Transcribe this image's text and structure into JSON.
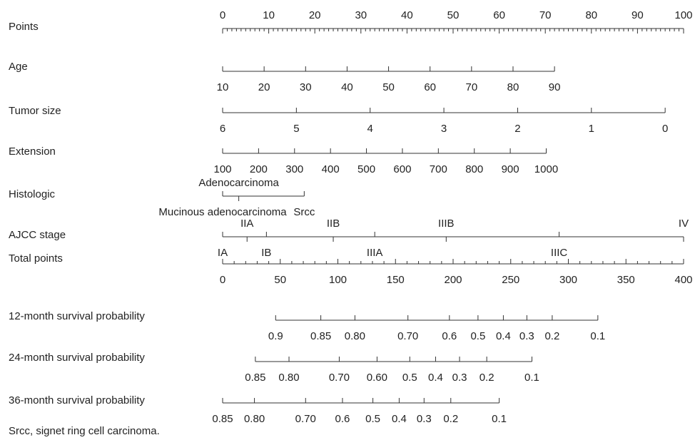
{
  "chart_data": {
    "type": "nomogram",
    "rows": [
      {
        "label": "Points",
        "ticks": [
          "0",
          "10",
          "20",
          "30",
          "40",
          "50",
          "60",
          "70",
          "80",
          "90",
          "100"
        ],
        "tick_positions": [
          0,
          10,
          20,
          30,
          40,
          50,
          60,
          70,
          80,
          90,
          100
        ],
        "labels_side": "above",
        "minor_ticks": 10
      },
      {
        "label": "Age",
        "ticks": [
          "10",
          "20",
          "30",
          "40",
          "50",
          "60",
          "70",
          "80",
          "90"
        ],
        "tick_positions": [
          0,
          9,
          18,
          27,
          36,
          45,
          54,
          63,
          72
        ],
        "labels_side": "below",
        "minor_ticks": 0
      },
      {
        "label": "Tumor size",
        "ticks": [
          "6",
          "5",
          "4",
          "3",
          "2",
          "1",
          "0"
        ],
        "tick_positions": [
          0,
          16,
          32,
          48,
          64,
          80,
          96
        ],
        "labels_side": "below",
        "minor_ticks": 0
      },
      {
        "label": "Extension",
        "ticks": [
          "100",
          "200",
          "300",
          "400",
          "500",
          "600",
          "700",
          "800",
          "900",
          "1000"
        ],
        "tick_positions": [
          0,
          7.8,
          15.6,
          23.4,
          31.2,
          39,
          46.8,
          54.6,
          62.4,
          70.2
        ],
        "labels_side": "below",
        "minor_ticks": 0
      },
      {
        "label": "Histologic",
        "ticks": [
          "Adenocarcinoma",
          "Mucinous adenocarcinoma",
          "Srcc"
        ],
        "tick_positions": [
          3.5,
          0,
          17.7
        ],
        "tick_sides": [
          "above",
          "below",
          "below"
        ],
        "minor_ticks": 0
      },
      {
        "label": "AJCC stage",
        "ticks": [
          "IA",
          "IIA",
          "IB",
          "IIB",
          "IIIA",
          "IIIB",
          "IIIC",
          "IV"
        ],
        "tick_positions": [
          0,
          5.3,
          9.5,
          24,
          33,
          48.5,
          73,
          100
        ],
        "tick_sides": [
          "below",
          "above",
          "below",
          "above",
          "below",
          "above",
          "below",
          "above"
        ],
        "minor_ticks": 0
      },
      {
        "label": "Total points",
        "ticks": [
          "0",
          "50",
          "100",
          "150",
          "200",
          "250",
          "300",
          "350",
          "400"
        ],
        "tick_positions": [
          0,
          12.5,
          25,
          37.5,
          50,
          62.5,
          75,
          87.5,
          100
        ],
        "labels_side": "below",
        "minor_ticks": 5
      },
      {
        "label": "12-month survival probability",
        "ticks": [
          "0.9",
          "0.85",
          "0.80",
          "0.70",
          "0.6",
          "0.5",
          "0.4",
          "0.3",
          "0.2",
          "0.1"
        ],
        "tick_positions": [
          11.5,
          21.3,
          28.7,
          40.2,
          49.2,
          55.4,
          60.9,
          66,
          71.5,
          81.4
        ],
        "labels_side": "below",
        "minor_ticks": 0
      },
      {
        "label": "24-month survival probability",
        "ticks": [
          "0.85",
          "0.80",
          "0.70",
          "0.60",
          "0.5",
          "0.4",
          "0.3",
          "0.2",
          "0.1"
        ],
        "tick_positions": [
          7.1,
          14.4,
          25.3,
          33.5,
          40.6,
          46.2,
          51.4,
          57.3,
          67.1
        ],
        "labels_side": "below",
        "minor_ticks": 0
      },
      {
        "label": "36-month survival probability",
        "ticks": [
          "0.85",
          "0.80",
          "0.70",
          "0.6",
          "0.5",
          "0.4",
          "0.3",
          "0.2",
          "0.1"
        ],
        "tick_positions": [
          0,
          6.9,
          18,
          26,
          32.6,
          38.3,
          43.7,
          49.5,
          60
        ],
        "labels_side": "below",
        "minor_ticks": 0
      }
    ],
    "points_range": [
      0,
      100
    ],
    "total_points_range": [
      0,
      400
    ]
  },
  "footnote": "Srcc, signet ring cell carcinoma."
}
